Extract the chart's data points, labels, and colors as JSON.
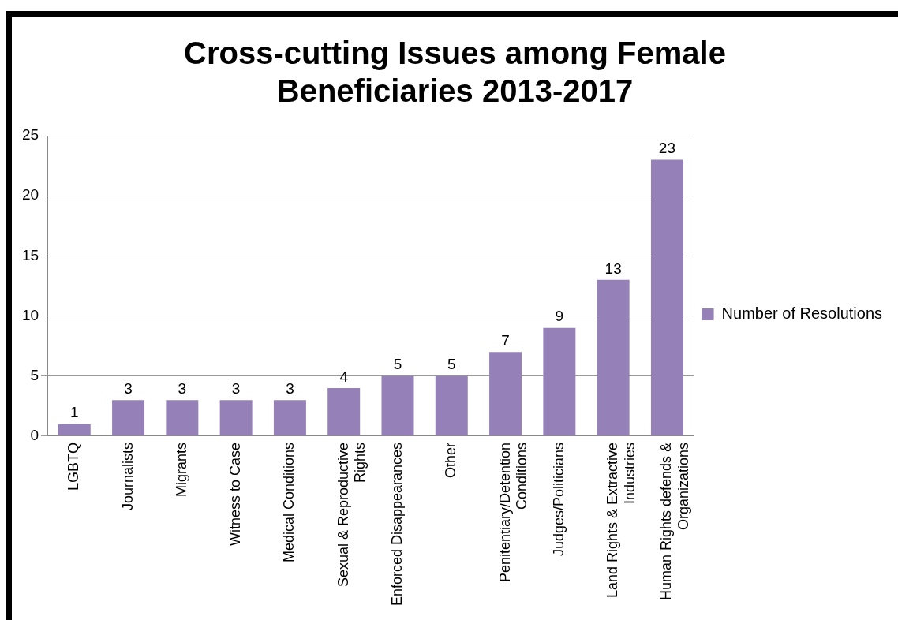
{
  "chart_data": {
    "type": "bar",
    "title": "Cross-cutting Issues among Female Beneficiaries 2013-2017",
    "categories": [
      "LGBTQ",
      "Journalists",
      "Migrants",
      "Witness to Case",
      "Medical Conditions",
      "Sexual & Reproductive Rights",
      "Enforced Disappearances",
      "Other",
      "Penitentiary/Detention Conditions",
      "Judges/Politicians",
      "Land Rights & Extractive Industries",
      "Human Rights defends & Organizations"
    ],
    "series": [
      {
        "name": "Number of Resolutions",
        "color": "#9580b8",
        "values": [
          1,
          3,
          3,
          3,
          3,
          4,
          5,
          5,
          7,
          9,
          13,
          23
        ]
      }
    ],
    "ylim": [
      0,
      25
    ],
    "yticks": [
      0,
      5,
      10,
      15,
      20,
      25
    ],
    "grid": "y",
    "legend": "right",
    "data_labels": true
  }
}
